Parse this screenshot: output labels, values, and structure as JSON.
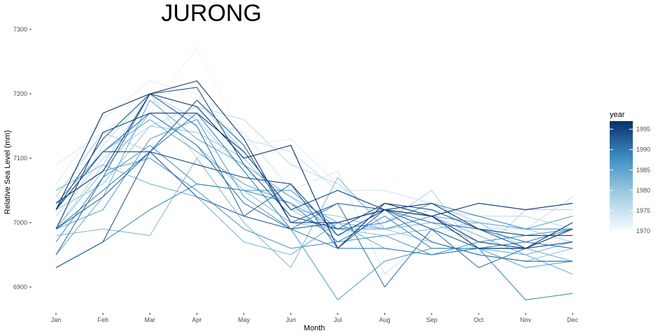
{
  "chart_data": {
    "type": "line",
    "title": "JURONG",
    "xlabel": "Month",
    "ylabel": "Relative Sea Level (mm)",
    "categories": [
      "Jan",
      "Feb",
      "Mar",
      "Apr",
      "May",
      "Jun",
      "Jul",
      "Aug",
      "Sep",
      "Oct",
      "Nov",
      "Dec"
    ],
    "yticks": [
      6900,
      7000,
      7100,
      7200,
      7300
    ],
    "ylim": [
      6860,
      7300
    ],
    "grid": false,
    "legend": {
      "title": "year",
      "position": "right",
      "type": "colorbar",
      "ticks": [
        1970,
        1975,
        1980,
        1985,
        1990,
        1995
      ],
      "range": [
        1970,
        1997
      ],
      "color_low": "#f7fbff",
      "color_high": "#08306b"
    },
    "series": [
      {
        "year": 1970,
        "values": [
          7080,
          7130,
          7240,
          7280,
          7150,
          7090,
          7040,
          7060,
          7080,
          7050,
          7010,
          6990
        ]
      },
      {
        "year": 1971,
        "values": [
          7050,
          7110,
          7180,
          7270,
          7130,
          7060,
          6980,
          6960,
          6970,
          6990,
          6980,
          6970
        ]
      },
      {
        "year": 1972,
        "values": [
          7060,
          7160,
          7220,
          7200,
          7120,
          7130,
          7060,
          7010,
          6990,
          6960,
          6950,
          6970
        ]
      },
      {
        "year": 1973,
        "values": [
          7090,
          7140,
          7190,
          7160,
          7140,
          7050,
          7080,
          6920,
          6980,
          7000,
          6980,
          6990
        ]
      },
      {
        "year": 1974,
        "values": [
          6990,
          7120,
          7200,
          7100,
          7130,
          7110,
          7050,
          7050,
          7030,
          6990,
          6990,
          7040
        ]
      },
      {
        "year": 1975,
        "values": [
          7010,
          7100,
          7150,
          7180,
          7160,
          7090,
          7060,
          7000,
          7020,
          7010,
          7010,
          6990
        ]
      },
      {
        "year": 1976,
        "values": [
          6990,
          7090,
          7200,
          7160,
          7080,
          7040,
          6980,
          7000,
          7050,
          6950,
          7020,
          7020
        ]
      },
      {
        "year": 1977,
        "values": [
          7040,
          7140,
          7110,
          7190,
          7110,
          7020,
          6980,
          7020,
          7030,
          7000,
          6990,
          6970
        ]
      },
      {
        "year": 1978,
        "values": [
          7020,
          7060,
          7150,
          7140,
          7100,
          7020,
          7010,
          6990,
          6970,
          6950,
          6940,
          6960
        ]
      },
      {
        "year": 1979,
        "values": [
          6990,
          7080,
          7170,
          7120,
          7050,
          7000,
          6990,
          6980,
          6990,
          7000,
          6960,
          6940
        ]
      },
      {
        "year": 1980,
        "values": [
          6980,
          6990,
          6980,
          7100,
          7000,
          6930,
          7070,
          6990,
          7000,
          6970,
          6960,
          6940
        ]
      },
      {
        "year": 1981,
        "values": [
          7050,
          7090,
          7060,
          7040,
          6970,
          6950,
          7000,
          6990,
          7010,
          6980,
          6950,
          6970
        ]
      },
      {
        "year": 1982,
        "values": [
          6950,
          7040,
          7190,
          7130,
          7090,
          7040,
          7000,
          6960,
          6950,
          6960,
          6950,
          6920
        ]
      },
      {
        "year": 1983,
        "values": [
          7030,
          7110,
          7160,
          7110,
          7060,
          7030,
          6990,
          6990,
          7010,
          7000,
          6990,
          7010
        ]
      },
      {
        "year": 1984,
        "values": [
          6990,
          7020,
          7130,
          7160,
          7040,
          6990,
          6880,
          6940,
          6960,
          6960,
          6930,
          6940
        ]
      },
      {
        "year": 1985,
        "values": [
          7030,
          7080,
          7100,
          7050,
          6990,
          6960,
          6970,
          6980,
          6950,
          6970,
          6980,
          6990
        ]
      },
      {
        "year": 1986,
        "values": [
          6970,
          7070,
          7120,
          7060,
          7050,
          7050,
          6990,
          7000,
          7030,
          7010,
          6990,
          6990
        ]
      },
      {
        "year": 1987,
        "values": [
          6930,
          6970,
          7020,
          7060,
          7050,
          7030,
          6970,
          7010,
          6960,
          6960,
          6880,
          6890
        ]
      },
      {
        "year": 1988,
        "values": [
          6990,
          7050,
          7110,
          7170,
          7080,
          6990,
          6960,
          6960,
          6950,
          6960,
          6970,
          6990
        ]
      },
      {
        "year": 1989,
        "values": [
          7020,
          7110,
          7170,
          7120,
          7030,
          6990,
          7030,
          6900,
          6990,
          6930,
          6960,
          6970
        ]
      },
      {
        "year": 1990,
        "values": [
          6950,
          7070,
          7200,
          7150,
          7010,
          7060,
          6960,
          7020,
          7000,
          6990,
          6970,
          6960
        ]
      },
      {
        "year": 1991,
        "values": [
          6990,
          7040,
          7110,
          7190,
          7120,
          7000,
          7030,
          7020,
          6970,
          6950,
          6940,
          6940
        ]
      },
      {
        "year": 1992,
        "values": [
          6930,
          6970,
          7110,
          7040,
          7010,
          6990,
          7000,
          7020,
          6990,
          6960,
          6960,
          6970
        ]
      },
      {
        "year": 1993,
        "values": [
          7020,
          7130,
          7200,
          7210,
          7090,
          7010,
          6990,
          7030,
          7020,
          6990,
          6960,
          6990
        ]
      },
      {
        "year": 1994,
        "values": [
          7020,
          7110,
          7110,
          7090,
          7070,
          7060,
          6980,
          7020,
          7010,
          6970,
          6960,
          6990
        ]
      },
      {
        "year": 1995,
        "values": [
          6990,
          7140,
          7170,
          7170,
          7110,
          7020,
          7050,
          7020,
          7030,
          6990,
          6980,
          6980
        ]
      },
      {
        "year": 1996,
        "values": [
          7030,
          7080,
          7200,
          7220,
          7130,
          7000,
          7000,
          7020,
          7010,
          6960,
          6960,
          7000
        ]
      },
      {
        "year": 1997,
        "values": [
          7020,
          7170,
          7200,
          7180,
          7100,
          7120,
          6960,
          7030,
          7010,
          7030,
          7020,
          7030
        ]
      }
    ]
  }
}
